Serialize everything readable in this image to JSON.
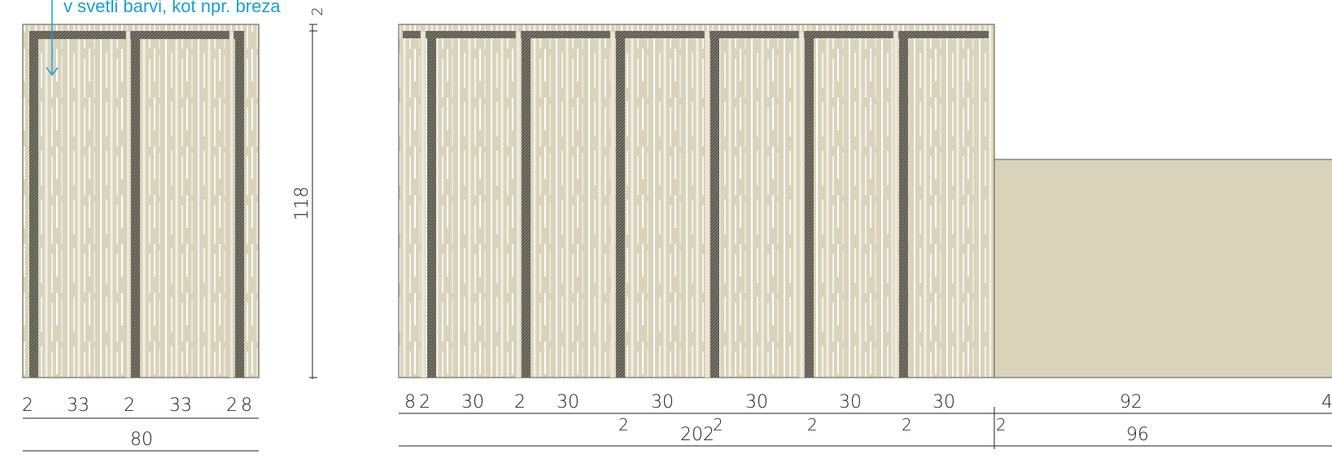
{
  "annotation": {
    "text": "v svetli barvi, kot npr. breza",
    "color": "#1a9fd0"
  },
  "colors": {
    "panel": "#d9d3bc",
    "panel_stripe": "#ffffff",
    "post": "#4d4a42",
    "outline": "#8a8678"
  },
  "left_view": {
    "height_dim": "118",
    "top_dim": "2",
    "bottom_dims": [
      "2",
      "33",
      "2",
      "33",
      "2",
      "8"
    ],
    "total": "80"
  },
  "right_view": {
    "bottom_dims": [
      "8",
      "2",
      "30",
      "2",
      "30",
      "30",
      "30",
      "30",
      "30",
      "92",
      "4"
    ],
    "small_dims": [
      "2",
      "2",
      "2",
      "2",
      "2",
      "2"
    ],
    "totals": [
      "202",
      "96"
    ]
  }
}
